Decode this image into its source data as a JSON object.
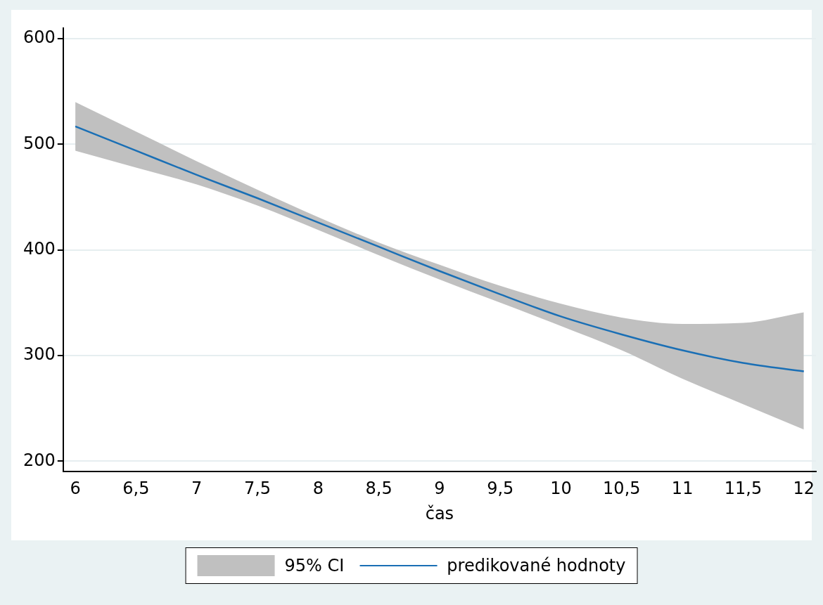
{
  "chart_data": {
    "type": "line",
    "xlabel": "čas",
    "x": [
      6,
      6.5,
      7,
      7.5,
      8,
      8.5,
      9,
      9.5,
      10,
      10.5,
      11,
      11.5,
      12
    ],
    "series": [
      {
        "name": "predikované hodnoty",
        "color": "#1a6fb5",
        "values": [
          517,
          494,
          471,
          449,
          426,
          403,
          380,
          358,
          337,
          320,
          305,
          293,
          285
        ],
        "lower": [
          494,
          478,
          462,
          442,
          419,
          395,
          372,
          350,
          328,
          305,
          278,
          254,
          230
        ],
        "upper": [
          540,
          512,
          484,
          457,
          431,
          407,
          386,
          366,
          349,
          336,
          330,
          331,
          341
        ]
      }
    ],
    "annotations": [
      "95% CI"
    ],
    "xlim": [
      5.9,
      12.1
    ],
    "ylim": [
      190,
      610
    ],
    "xticks": [
      6,
      {
        "value": 6.5,
        "label": "6,5"
      },
      7,
      {
        "value": 7.5,
        "label": "7,5"
      },
      8,
      {
        "value": 8.5,
        "label": "8,5"
      },
      9,
      {
        "value": 9.5,
        "label": "9,5"
      },
      10,
      {
        "value": 10.5,
        "label": "10,5"
      },
      11,
      {
        "value": 11.5,
        "label": "11,5"
      },
      12
    ],
    "yticks": [
      200,
      300,
      400,
      500,
      600
    ],
    "grid": "y",
    "legend": "bottom",
    "marker": "none",
    "line_style": "solid"
  }
}
